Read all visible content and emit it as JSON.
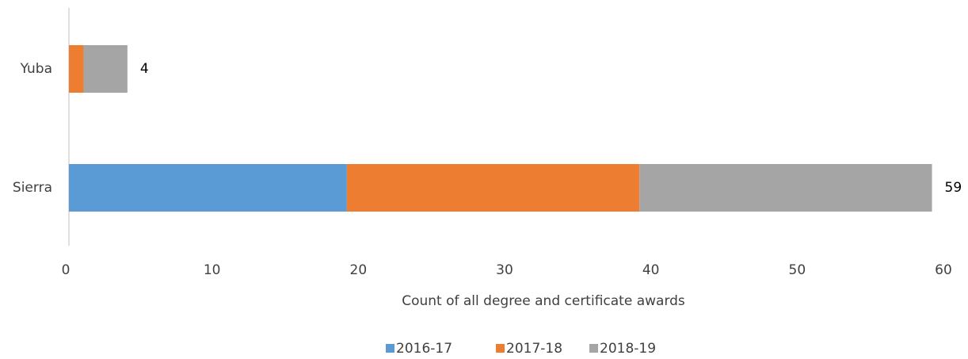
{
  "chart_data": {
    "type": "stacked-barh",
    "xlabel": "Count of all degree and certificate awards",
    "categories": [
      "Yuba",
      "Sierra"
    ],
    "series": [
      {
        "name": "2016-17",
        "color": "#5b9bd5",
        "values": [
          0,
          19
        ]
      },
      {
        "name": "2017-18",
        "color": "#ed7d31",
        "values": [
          1,
          20
        ]
      },
      {
        "name": "2018-19",
        "color": "#a5a5a5",
        "values": [
          3,
          20
        ]
      }
    ],
    "totals": [
      4,
      59
    ],
    "xlim": [
      0,
      60
    ],
    "xticks": [
      0,
      10,
      20,
      30,
      40,
      50,
      60
    ],
    "legend": "bottom"
  }
}
